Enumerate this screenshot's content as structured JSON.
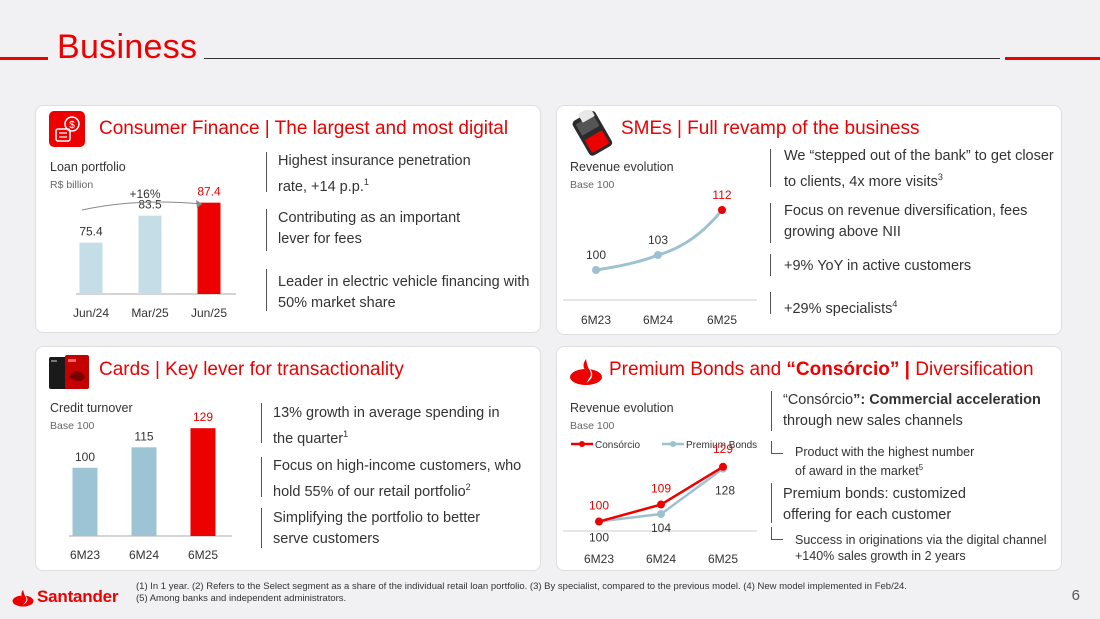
{
  "page": {
    "title": "Business",
    "page_number": "6"
  },
  "colors": {
    "brand_red": "#ec0000",
    "light_blue": "#c5dde6",
    "mid_blue": "#9dc4d4",
    "line_blue": "#9dc1d0"
  },
  "consumer": {
    "title": "Consumer Finance | The largest and most digital",
    "chart_label": "Loan portfolio",
    "chart_unit": "R$ billion",
    "growth_label": "+16%",
    "bullets": [
      {
        "text": "Highest insurance penetration rate, +14 p.p.",
        "sup": "1"
      },
      {
        "text": "Contributing as an important lever for fees",
        "sup": ""
      },
      {
        "text": "Leader in electric vehicle financing with 50% market share",
        "sup": ""
      }
    ]
  },
  "smes": {
    "title": "SMEs | Full revamp of the business",
    "chart_label": "Revenue evolution",
    "chart_unit": "Base 100",
    "bullets": [
      {
        "text": "We “stepped out of the bank” to get closer to clients, 4x more visits",
        "sup": "3"
      },
      {
        "text": "Focus on revenue diversification, fees growing above NII",
        "sup": ""
      },
      {
        "text": "+9% YoY in active customers",
        "sup": ""
      },
      {
        "text": "+29% specialists",
        "sup": "4"
      }
    ]
  },
  "cards": {
    "title": "Cards | Key lever for transactionality",
    "chart_label": "Credit turnover",
    "chart_unit": "Base 100",
    "bullets": [
      {
        "text": "13% growth in average spending in the quarter",
        "sup": "1"
      },
      {
        "text": "Focus on high-income customers, who hold 55% of our retail portfolio",
        "sup": "2"
      },
      {
        "text": "Simplifying the portfolio to better serve customers",
        "sup": ""
      }
    ]
  },
  "premium": {
    "title_pre": "Premium Bonds and ",
    "title_bold": "“Consórcio” |",
    "title_post": " Diversification",
    "chart_label": "Revenue evolution",
    "chart_unit": "Base 100",
    "consorcio_head_q": "“Consórcio",
    "consorcio_head_rest": "”: Commercial acceleration",
    "consorcio_line2": "through new sales channels",
    "consorcio_sub_1": "Product with the highest number",
    "consorcio_sub_2": "of award in the market",
    "consorcio_sub_sup": "5",
    "bonds_head": "Premium bonds: customized offering for each customer",
    "bonds_sub_1": "Success in originations via the digital channel",
    "bonds_sub_2": "+140% sales growth in 2 years"
  },
  "chart_data": [
    {
      "id": "consumer",
      "type": "bar",
      "title": "Loan portfolio",
      "ylabel": "R$ billion",
      "categories": [
        "Jun/24",
        "Mar/25",
        "Jun/25"
      ],
      "values": [
        75.4,
        83.5,
        87.4
      ],
      "value_labels": [
        "75.4",
        "83.5",
        "87.4"
      ],
      "highlight_last": true,
      "ylim": [
        60,
        90
      ],
      "annotation": "+16%"
    },
    {
      "id": "smes",
      "type": "line",
      "title": "Revenue evolution",
      "ylabel": "Base 100",
      "categories": [
        "6M23",
        "6M24",
        "6M25"
      ],
      "values": [
        100,
        103,
        112
      ],
      "value_labels": [
        "100",
        "103",
        "112"
      ],
      "ylim": [
        94,
        114
      ]
    },
    {
      "id": "cards",
      "type": "bar",
      "title": "Credit turnover",
      "ylabel": "Base 100",
      "categories": [
        "6M23",
        "6M24",
        "6M25"
      ],
      "values": [
        100,
        115,
        129
      ],
      "value_labels": [
        "100",
        "115",
        "129"
      ],
      "highlight_last": true,
      "ylim": [
        50,
        135
      ]
    },
    {
      "id": "premium",
      "type": "line",
      "title": "Revenue evolution",
      "ylabel": "Base 100",
      "categories": [
        "6M23",
        "6M24",
        "6M25"
      ],
      "series": [
        {
          "name": "Consórcio",
          "values": [
            100,
            109,
            129
          ],
          "value_labels": [
            "100",
            "109",
            "129"
          ]
        },
        {
          "name": "Premium Bonds",
          "values": [
            100,
            104,
            128
          ],
          "value_labels": [
            "100",
            "104",
            "128"
          ]
        }
      ],
      "ylim": [
        95,
        131
      ]
    }
  ],
  "footnotes": {
    "line1": "(1) In 1 year. (2) Refers to the Select segment as a share of the individual retail loan portfolio. (3) By specialist, compared to the previous model. (4) New model implemented in Feb/24.",
    "line2": "(5) Among banks and independent administrators."
  },
  "logo": {
    "text": "Santander"
  }
}
